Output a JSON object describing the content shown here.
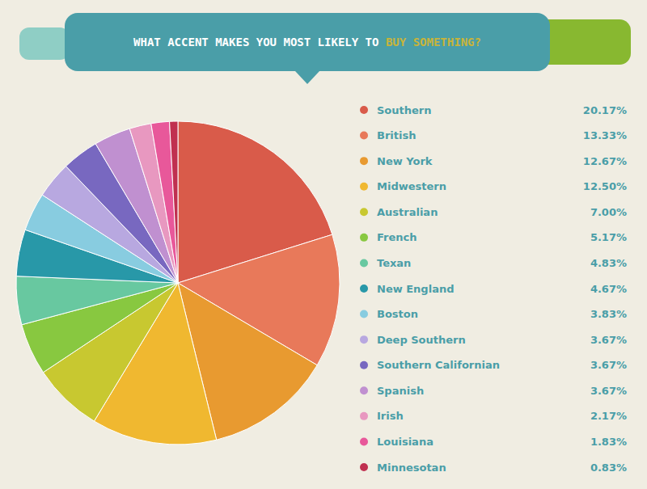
{
  "chart_data": {
    "type": "pie",
    "title": "WHAT ACCENT MAKES YOU MOST LIKELY TO BUY SOMETHING?",
    "categories": [
      "Southern",
      "British",
      "New York",
      "Midwestern",
      "Australian",
      "French",
      "Texan",
      "New England",
      "Boston",
      "Deep Southern",
      "Southern Californian",
      "Spanish",
      "Irish",
      "Louisiana",
      "Minnesotan"
    ],
    "values": [
      20.17,
      13.33,
      12.67,
      12.5,
      7.0,
      5.17,
      4.83,
      4.67,
      3.83,
      3.67,
      3.67,
      3.67,
      2.17,
      1.83,
      0.83
    ],
    "value_labels": [
      "20.17%",
      "13.33%",
      "12.67%",
      "12.50%",
      "7.00%",
      "5.17%",
      "4.83%",
      "4.67%",
      "3.83%",
      "3.67%",
      "3.67%",
      "3.67%",
      "2.17%",
      "1.83%",
      "0.83%"
    ],
    "colors": [
      "#d95b4a",
      "#e8795a",
      "#e89a30",
      "#f0b830",
      "#c8c830",
      "#88c840",
      "#68c8a0",
      "#2898a8",
      "#88cce0",
      "#b8a8e0",
      "#7868c0",
      "#c090d0",
      "#e898c0",
      "#e8589a",
      "#c03050"
    ],
    "legend": "right"
  }
}
